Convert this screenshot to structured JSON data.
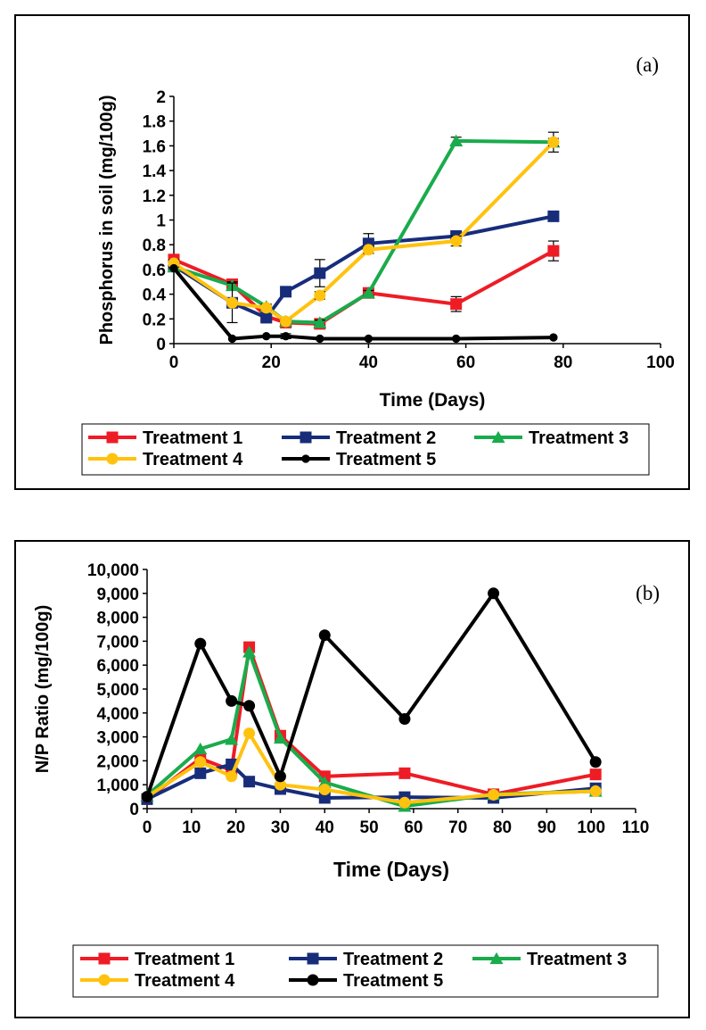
{
  "chart_data": [
    {
      "type": "line",
      "panel_label": "(a)",
      "xlabel": "Time (Days)",
      "ylabel": "Phosphorus in soil (mg/100g)",
      "xlim": [
        0,
        100
      ],
      "ylim": [
        0,
        2
      ],
      "x_ticks": [
        "0",
        "20",
        "40",
        "60",
        "80",
        "100"
      ],
      "y_ticks": [
        "0",
        "0.2",
        "0.4",
        "0.6",
        "0.8",
        "1",
        "1.2",
        "1.4",
        "1.6",
        "1.8",
        "2"
      ],
      "legend_position": "bottom",
      "series": [
        {
          "name": "Treatment 1",
          "color": "#ee1c25",
          "marker": "square",
          "x": [
            0,
            12,
            19,
            23,
            30,
            40,
            58,
            78
          ],
          "y": [
            0.68,
            0.48,
            0.22,
            0.17,
            0.16,
            0.41,
            0.32,
            0.75
          ],
          "err": [
            0.03,
            0.03,
            0.02,
            0.02,
            0.02,
            0.02,
            0.06,
            0.08
          ]
        },
        {
          "name": "Treatment 2",
          "color": "#172d7a",
          "marker": "square",
          "x": [
            0,
            12,
            19,
            23,
            30,
            40,
            58,
            78
          ],
          "y": [
            0.63,
            0.33,
            0.21,
            0.42,
            0.57,
            0.81,
            0.87,
            1.03
          ],
          "err": [
            0.03,
            0.03,
            0.02,
            0.03,
            0.11,
            0.08,
            0.03,
            0.03
          ]
        },
        {
          "name": "Treatment 3",
          "color": "#1aab4c",
          "marker": "triangle",
          "x": [
            0,
            12,
            19,
            23,
            30,
            40,
            58,
            78
          ],
          "y": [
            0.62,
            0.47,
            0.3,
            0.18,
            0.17,
            0.41,
            1.64,
            1.63
          ],
          "err": [
            0.03,
            0.03,
            0.02,
            0.02,
            0.02,
            0.02,
            0.03,
            0.08
          ]
        },
        {
          "name": "Treatment 4",
          "color": "#ffc20e",
          "marker": "circle",
          "x": [
            0,
            12,
            19,
            23,
            30,
            40,
            58,
            78
          ],
          "y": [
            0.65,
            0.33,
            0.29,
            0.18,
            0.39,
            0.76,
            0.83,
            1.63
          ],
          "err": [
            0.03,
            0.16,
            0.02,
            0.02,
            0.03,
            0.03,
            0.04,
            0.03
          ]
        },
        {
          "name": "Treatment 5",
          "color": "#000000",
          "marker": "dot",
          "x": [
            0,
            12,
            19,
            23,
            30,
            40,
            58,
            78
          ],
          "y": [
            0.61,
            0.04,
            0.06,
            0.06,
            0.04,
            0.04,
            0.04,
            0.05
          ],
          "err": [
            0,
            0,
            0,
            0.02,
            0,
            0,
            0,
            0
          ]
        }
      ]
    },
    {
      "type": "line",
      "panel_label": "(b)",
      "xlabel": "Time (Days)",
      "ylabel": "N/P Ratio (mg/100g)",
      "xlim": [
        0,
        110
      ],
      "ylim": [
        0,
        10000
      ],
      "x_ticks": [
        "0",
        "10",
        "20",
        "30",
        "40",
        "50",
        "60",
        "70",
        "80",
        "90",
        "100",
        "110"
      ],
      "y_ticks": [
        "0",
        "1,000",
        "2,000",
        "3,000",
        "4,000",
        "5,000",
        "6,000",
        "7,000",
        "8,000",
        "9,000",
        "10,000"
      ],
      "legend_position": "bottom",
      "series": [
        {
          "name": "Treatment 1",
          "color": "#ee1c25",
          "marker": "square",
          "x": [
            0,
            12,
            19,
            23,
            30,
            40,
            58,
            78,
            101
          ],
          "y": [
            400,
            2100,
            1600,
            6750,
            3050,
            1350,
            1480,
            600,
            1430
          ]
        },
        {
          "name": "Treatment 2",
          "color": "#172d7a",
          "marker": "square",
          "x": [
            0,
            12,
            19,
            23,
            30,
            40,
            58,
            78,
            101
          ],
          "y": [
            400,
            1480,
            1850,
            1130,
            820,
            450,
            480,
            450,
            850
          ]
        },
        {
          "name": "Treatment 3",
          "color": "#1aab4c",
          "marker": "triangle",
          "x": [
            0,
            12,
            19,
            23,
            30,
            40,
            58,
            78,
            101
          ],
          "y": [
            550,
            2500,
            2900,
            6550,
            2950,
            1100,
            100,
            600,
            730
          ]
        },
        {
          "name": "Treatment 4",
          "color": "#ffc20e",
          "marker": "circle",
          "x": [
            0,
            12,
            19,
            23,
            30,
            40,
            58,
            78,
            101
          ],
          "y": [
            500,
            1950,
            1350,
            3150,
            1000,
            800,
            250,
            580,
            730
          ]
        },
        {
          "name": "Treatment 5",
          "color": "#000000",
          "marker": "circle",
          "x": [
            0,
            12,
            19,
            23,
            30,
            40,
            58,
            78,
            101
          ],
          "y": [
            500,
            6900,
            4500,
            4300,
            1350,
            7250,
            3750,
            9000,
            1950
          ]
        }
      ]
    }
  ]
}
